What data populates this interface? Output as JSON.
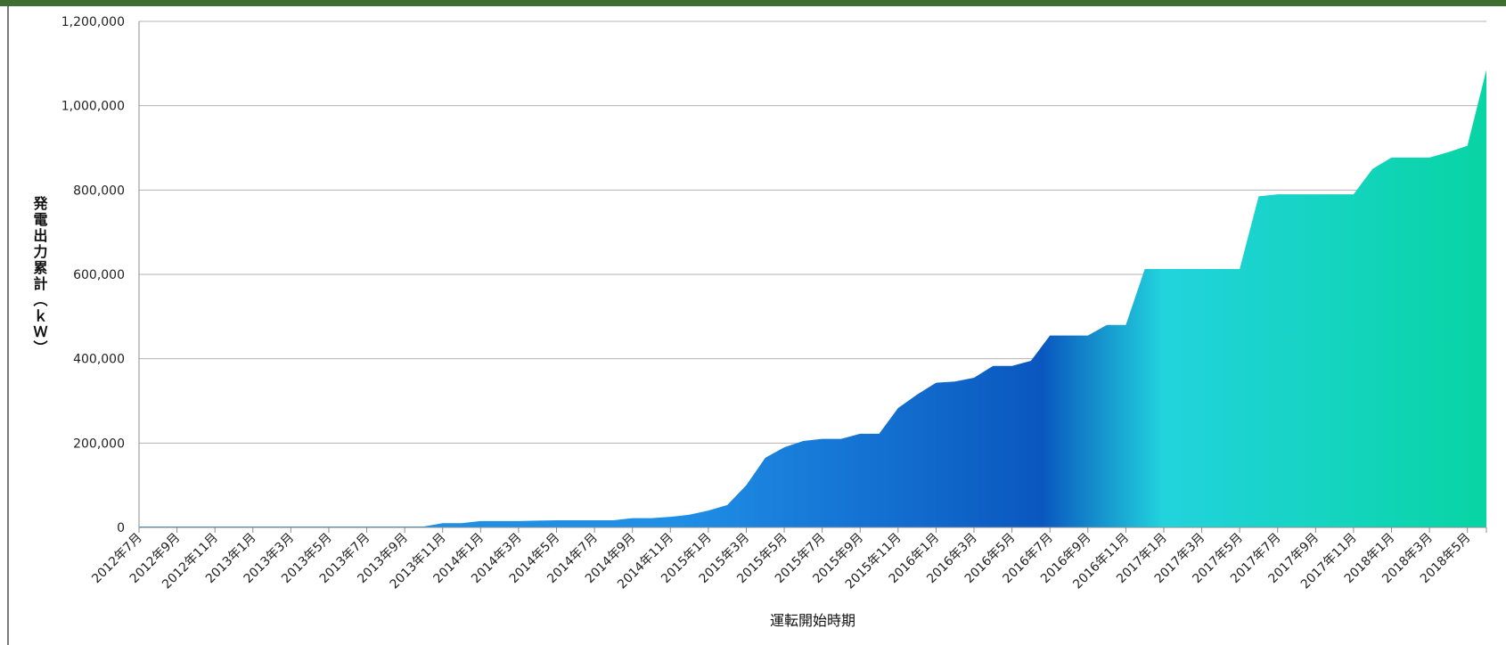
{
  "chart_data": {
    "type": "area",
    "title": "",
    "xlabel": "運転開始時期",
    "ylabel": "発電出力累計（ｋＷ）",
    "ylim": [
      0,
      1200000
    ],
    "yticks": [
      0,
      200000,
      400000,
      600000,
      800000,
      1000000,
      1200000
    ],
    "ytick_labels": [
      "0",
      "200,000",
      "400,000",
      "600,000",
      "800,000",
      "1,000,000",
      "1,200,000"
    ],
    "grid": true,
    "legend": "none",
    "x_tick_labels": [
      "2012年7月",
      "2012年9月",
      "2012年11月",
      "2013年1月",
      "2013年3月",
      "2013年5月",
      "2013年7月",
      "2013年9月",
      "2013年11月",
      "2014年1月",
      "2014年3月",
      "2014年5月",
      "2014年7月",
      "2014年9月",
      "2014年11月",
      "2015年1月",
      "2015年3月",
      "2015年5月",
      "2015年7月",
      "2015年9月",
      "2015年11月",
      "2016年1月",
      "2016年3月",
      "2016年5月",
      "2016年7月",
      "2016年9月",
      "2016年11月",
      "2017年1月",
      "2017年3月",
      "2017年5月",
      "2017年7月",
      "2017年9月",
      "2017年11月",
      "2018年1月",
      "2018年3月",
      "2018年5月"
    ],
    "months": [
      "2012年7月",
      "2012年8月",
      "2012年9月",
      "2012年10月",
      "2012年11月",
      "2012年12月",
      "2013年1月",
      "2013年2月",
      "2013年3月",
      "2013年4月",
      "2013年5月",
      "2013年6月",
      "2013年7月",
      "2013年8月",
      "2013年9月",
      "2013年10月",
      "2013年11月",
      "2013年12月",
      "2014年1月",
      "2014年2月",
      "2014年3月",
      "2014年4月",
      "2014年5月",
      "2014年6月",
      "2014年7月",
      "2014年8月",
      "2014年9月",
      "2014年10月",
      "2014年11月",
      "2014年12月",
      "2015年1月",
      "2015年2月",
      "2015年3月",
      "2015年4月",
      "2015年5月",
      "2015年6月",
      "2015年7月",
      "2015年8月",
      "2015年9月",
      "2015年10月",
      "2015年11月",
      "2015年12月",
      "2016年1月",
      "2016年2月",
      "2016年3月",
      "2016年4月",
      "2016年5月",
      "2016年6月",
      "2016年7月",
      "2016年8月",
      "2016年9月",
      "2016年10月",
      "2016年11月",
      "2016年12月",
      "2017年1月",
      "2017年2月",
      "2017年3月",
      "2017年4月",
      "2017年5月",
      "2017年6月",
      "2017年7月",
      "2017年8月",
      "2017年9月",
      "2017年10月",
      "2017年11月",
      "2017年12月",
      "2018年1月",
      "2018年2月",
      "2018年3月",
      "2018年4月",
      "2018年5月",
      "2018年6月"
    ],
    "values": [
      2000,
      2000,
      2000,
      2000,
      2000,
      2000,
      2000,
      2000,
      2000,
      2000,
      2000,
      2000,
      2000,
      2000,
      2000,
      2000,
      10000,
      10000,
      15000,
      15000,
      15000,
      16000,
      17000,
      17000,
      17000,
      17000,
      22000,
      22000,
      25000,
      30000,
      40000,
      53000,
      100000,
      165000,
      190000,
      205000,
      210000,
      210000,
      222000,
      222000,
      283000,
      315000,
      343000,
      346000,
      355000,
      383000,
      383000,
      395000,
      455000,
      455000,
      455000,
      480000,
      480000,
      613000,
      613000,
      613000,
      613000,
      613000,
      613000,
      785000,
      790000,
      790000,
      790000,
      790000,
      790000,
      850000,
      877000,
      877000,
      877000,
      890000,
      905000,
      1085000
    ],
    "colors": {
      "blue_light": "#1f8fe6",
      "blue_dark": "#0a57bf",
      "cyan": "#22d3dd",
      "green": "#08d4a4",
      "gridline": "#b3b3b3",
      "axis": "#8c8c8c",
      "header_bar": "#3f6e31"
    }
  }
}
